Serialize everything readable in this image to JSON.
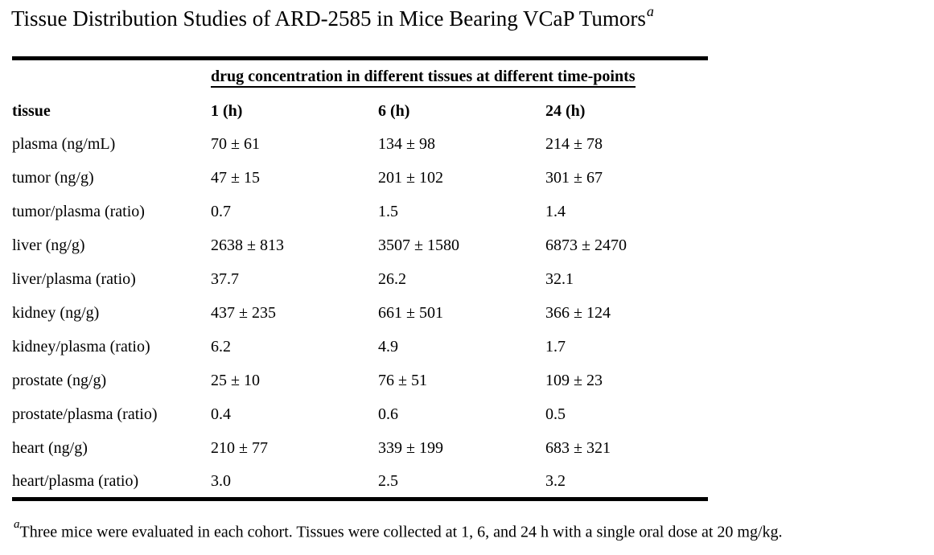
{
  "page": {
    "background_color": "#ffffff",
    "text_color": "#000000",
    "rule_color": "#000000"
  },
  "title": {
    "text": "Tissue Distribution Studies of ARD-2585 in Mice Bearing VCaP Tumors",
    "footnote_marker": "a"
  },
  "table": {
    "spanning_header": "drug concentration in different tissues at different time-points",
    "columns": [
      "tissue",
      "1 (h)",
      "6 (h)",
      "24 (h)"
    ],
    "rows": [
      [
        "plasma (ng/mL)",
        "70 ± 61",
        "134 ± 98",
        "214 ± 78"
      ],
      [
        "tumor (ng/g)",
        "47 ± 15",
        "201 ± 102",
        "301 ± 67"
      ],
      [
        "tumor/plasma (ratio)",
        "0.7",
        "1.5",
        "1.4"
      ],
      [
        "liver (ng/g)",
        "2638 ± 813",
        "3507 ± 1580",
        "6873 ± 2470"
      ],
      [
        "liver/plasma (ratio)",
        "37.7",
        "26.2",
        "32.1"
      ],
      [
        "kidney (ng/g)",
        "437 ± 235",
        "661 ± 501",
        "366 ± 124"
      ],
      [
        "kidney/plasma (ratio)",
        "6.2",
        "4.9",
        "1.7"
      ],
      [
        "prostate (ng/g)",
        "25 ± 10",
        "76 ± 51",
        "109 ± 23"
      ],
      [
        "prostate/plasma (ratio)",
        "0.4",
        "0.6",
        "0.5"
      ],
      [
        "heart (ng/g)",
        "210 ± 77",
        "339 ± 199",
        "683 ± 321"
      ],
      [
        "heart/plasma (ratio)",
        "3.0",
        "2.5",
        "3.2"
      ]
    ]
  },
  "footnote": {
    "marker": "a",
    "text": "Three mice were evaluated in each cohort. Tissues were collected at 1, 6, and 24 h with a single oral dose at 20 mg/kg."
  }
}
